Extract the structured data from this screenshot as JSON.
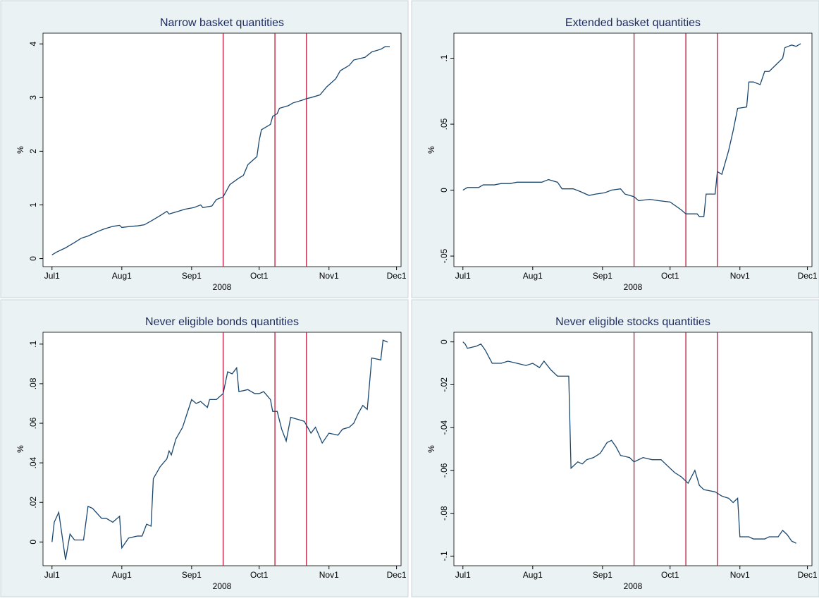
{
  "chart_data": [
    {
      "type": "line",
      "title": "Narrow basket quantities",
      "xlabel": "2008",
      "ylabel": "%",
      "color": "#1a476f",
      "vline_color": "#c0183a",
      "vlines": [
        "2008-09-15",
        "2008-10-08",
        "2008-10-22"
      ],
      "xlim": [
        "2008-06-27",
        "2008-12-03"
      ],
      "xticks": [
        {
          "value": "2008-07-01",
          "label": "Jul1"
        },
        {
          "value": "2008-08-01",
          "label": "Aug1"
        },
        {
          "value": "2008-09-01",
          "label": "Sep1"
        },
        {
          "value": "2008-10-01",
          "label": "Oct1"
        },
        {
          "value": "2008-11-01",
          "label": "Nov1"
        },
        {
          "value": "2008-12-01",
          "label": "Dec1"
        }
      ],
      "ylim": [
        -0.15,
        4.2
      ],
      "yticks": [
        0,
        1,
        2,
        3,
        4
      ],
      "x": [
        "2008-07-01",
        "2008-07-03",
        "2008-07-07",
        "2008-07-09",
        "2008-07-11",
        "2008-07-14",
        "2008-07-17",
        "2008-07-21",
        "2008-07-24",
        "2008-07-28",
        "2008-07-31",
        "2008-08-01",
        "2008-08-05",
        "2008-08-08",
        "2008-08-11",
        "2008-08-14",
        "2008-08-18",
        "2008-08-21",
        "2008-08-22",
        "2008-08-26",
        "2008-08-29",
        "2008-09-02",
        "2008-09-05",
        "2008-09-06",
        "2008-09-10",
        "2008-09-12",
        "2008-09-15",
        "2008-09-18",
        "2008-09-22",
        "2008-09-24",
        "2008-09-26",
        "2008-09-30",
        "2008-10-01",
        "2008-10-02",
        "2008-10-06",
        "2008-10-07",
        "2008-10-09",
        "2008-10-10",
        "2008-10-14",
        "2008-10-16",
        "2008-10-20",
        "2008-10-22",
        "2008-10-24",
        "2008-10-28",
        "2008-10-31",
        "2008-11-04",
        "2008-11-06",
        "2008-11-10",
        "2008-11-12",
        "2008-11-17",
        "2008-11-20",
        "2008-11-24",
        "2008-11-26",
        "2008-11-28"
      ],
      "values": [
        0.07,
        0.12,
        0.2,
        0.25,
        0.3,
        0.38,
        0.42,
        0.5,
        0.55,
        0.6,
        0.62,
        0.58,
        0.6,
        0.61,
        0.63,
        0.7,
        0.8,
        0.88,
        0.83,
        0.88,
        0.92,
        0.95,
        1.0,
        0.95,
        0.98,
        1.1,
        1.15,
        1.38,
        1.5,
        1.55,
        1.75,
        1.9,
        2.2,
        2.4,
        2.5,
        2.65,
        2.7,
        2.8,
        2.85,
        2.9,
        2.95,
        2.98,
        3.0,
        3.05,
        3.2,
        3.35,
        3.5,
        3.6,
        3.7,
        3.75,
        3.85,
        3.9,
        3.95,
        3.95
      ]
    },
    {
      "type": "line",
      "title": "Extended basket quantities",
      "xlabel": "2008",
      "ylabel": "%",
      "color": "#1a476f",
      "vline_color": "#c0183a",
      "vlines": [
        "2008-09-15",
        "2008-10-08",
        "2008-10-22"
      ],
      "xlim": [
        "2008-06-27",
        "2008-12-03"
      ],
      "xticks": [
        {
          "value": "2008-07-01",
          "label": "Jul1"
        },
        {
          "value": "2008-08-01",
          "label": "Aug1"
        },
        {
          "value": "2008-09-01",
          "label": "Sep1"
        },
        {
          "value": "2008-10-01",
          "label": "Oct1"
        },
        {
          "value": "2008-11-01",
          "label": "Nov1"
        },
        {
          "value": "2008-12-01",
          "label": "Dec1"
        }
      ],
      "ylim": [
        -0.058,
        0.119
      ],
      "yticks": [
        {
          "value": -0.05,
          "label": "-.05"
        },
        0,
        {
          "value": 0.05,
          "label": ".05"
        },
        {
          "value": 0.1,
          "label": ".1"
        }
      ],
      "x": [
        "2008-07-01",
        "2008-07-03",
        "2008-07-08",
        "2008-07-10",
        "2008-07-15",
        "2008-07-18",
        "2008-07-22",
        "2008-07-25",
        "2008-08-01",
        "2008-08-05",
        "2008-08-08",
        "2008-08-12",
        "2008-08-14",
        "2008-08-19",
        "2008-08-22",
        "2008-08-26",
        "2008-08-29",
        "2008-09-02",
        "2008-09-05",
        "2008-09-09",
        "2008-09-11",
        "2008-09-15",
        "2008-09-17",
        "2008-09-22",
        "2008-09-26",
        "2008-10-01",
        "2008-10-06",
        "2008-10-08",
        "2008-10-13",
        "2008-10-14",
        "2008-10-16",
        "2008-10-17",
        "2008-10-21",
        "2008-10-22",
        "2008-10-24",
        "2008-10-27",
        "2008-10-29",
        "2008-10-31",
        "2008-11-04",
        "2008-11-05",
        "2008-11-07",
        "2008-11-10",
        "2008-11-12",
        "2008-11-14",
        "2008-11-17",
        "2008-11-20",
        "2008-11-21",
        "2008-11-24",
        "2008-11-26",
        "2008-11-28"
      ],
      "values": [
        0,
        0.002,
        0.002,
        0.004,
        0.004,
        0.005,
        0.005,
        0.006,
        0.006,
        0.006,
        0.008,
        0.006,
        0.001,
        0.001,
        -0.001,
        -0.004,
        -0.003,
        -0.002,
        0,
        0.001,
        -0.003,
        -0.005,
        -0.008,
        -0.007,
        -0.008,
        -0.009,
        -0.015,
        -0.018,
        -0.018,
        -0.02,
        -0.02,
        -0.003,
        -0.003,
        0.014,
        0.012,
        0.03,
        0.045,
        0.062,
        0.063,
        0.082,
        0.082,
        0.08,
        0.09,
        0.09,
        0.095,
        0.1,
        0.108,
        0.11,
        0.109,
        0.111
      ]
    },
    {
      "type": "line",
      "title": "Never eligible bonds quantities",
      "xlabel": "2008",
      "ylabel": "%",
      "color": "#1a476f",
      "vline_color": "#c0183a",
      "vlines": [
        "2008-09-15",
        "2008-10-08",
        "2008-10-22"
      ],
      "xlim": [
        "2008-06-27",
        "2008-12-03"
      ],
      "xticks": [
        {
          "value": "2008-07-01",
          "label": "Jul1"
        },
        {
          "value": "2008-08-01",
          "label": "Aug1"
        },
        {
          "value": "2008-09-01",
          "label": "Sep1"
        },
        {
          "value": "2008-10-01",
          "label": "Oct1"
        },
        {
          "value": "2008-11-01",
          "label": "Nov1"
        },
        {
          "value": "2008-12-01",
          "label": "Dec1"
        }
      ],
      "ylim": [
        -0.012,
        0.106
      ],
      "yticks": [
        0,
        {
          "value": 0.02,
          "label": ".02"
        },
        {
          "value": 0.04,
          "label": ".04"
        },
        {
          "value": 0.06,
          "label": ".06"
        },
        {
          "value": 0.08,
          "label": ".08"
        },
        {
          "value": 0.1,
          "label": ".1"
        }
      ],
      "x": [
        "2008-07-01",
        "2008-07-02",
        "2008-07-04",
        "2008-07-07",
        "2008-07-09",
        "2008-07-11",
        "2008-07-15",
        "2008-07-17",
        "2008-07-19",
        "2008-07-23",
        "2008-07-25",
        "2008-07-28",
        "2008-07-30",
        "2008-07-31",
        "2008-08-01",
        "2008-08-04",
        "2008-08-08",
        "2008-08-10",
        "2008-08-12",
        "2008-08-14",
        "2008-08-15",
        "2008-08-18",
        "2008-08-21",
        "2008-08-22",
        "2008-08-23",
        "2008-08-25",
        "2008-08-28",
        "2008-08-30",
        "2008-09-01",
        "2008-09-03",
        "2008-09-05",
        "2008-09-08",
        "2008-09-09",
        "2008-09-12",
        "2008-09-15",
        "2008-09-17",
        "2008-09-19",
        "2008-09-21",
        "2008-09-22",
        "2008-09-26",
        "2008-09-29",
        "2008-10-01",
        "2008-10-03",
        "2008-10-06",
        "2008-10-07",
        "2008-10-09",
        "2008-10-11",
        "2008-10-13",
        "2008-10-15",
        "2008-10-18",
        "2008-10-21",
        "2008-10-24",
        "2008-10-26",
        "2008-10-29",
        "2008-11-01",
        "2008-11-05",
        "2008-11-07",
        "2008-11-10",
        "2008-11-12",
        "2008-11-14",
        "2008-11-16",
        "2008-11-18",
        "2008-11-20",
        "2008-11-24",
        "2008-11-25",
        "2008-11-27"
      ],
      "values": [
        0,
        0.01,
        0.015,
        -0.009,
        0.004,
        0.001,
        0.001,
        0.018,
        0.017,
        0.012,
        0.012,
        0.01,
        0.012,
        0.013,
        -0.003,
        0.002,
        0.003,
        0.003,
        0.009,
        0.008,
        0.032,
        0.038,
        0.042,
        0.046,
        0.044,
        0.052,
        0.058,
        0.065,
        0.072,
        0.07,
        0.071,
        0.068,
        0.072,
        0.072,
        0.075,
        0.086,
        0.085,
        0.088,
        0.076,
        0.077,
        0.075,
        0.075,
        0.076,
        0.072,
        0.066,
        0.066,
        0.057,
        0.051,
        0.063,
        0.062,
        0.061,
        0.055,
        0.058,
        0.05,
        0.055,
        0.054,
        0.057,
        0.058,
        0.06,
        0.065,
        0.069,
        0.067,
        0.093,
        0.092,
        0.102,
        0.101
      ]
    },
    {
      "type": "line",
      "title": "Never eligible stocks quantities",
      "xlabel": "2008",
      "ylabel": "%",
      "color": "#1a476f",
      "vline_color": "#c0183a",
      "vlines": [
        "2008-09-15",
        "2008-10-08",
        "2008-10-22"
      ],
      "xlim": [
        "2008-06-27",
        "2008-12-03"
      ],
      "xticks": [
        {
          "value": "2008-07-01",
          "label": "Jul1"
        },
        {
          "value": "2008-08-01",
          "label": "Aug1"
        },
        {
          "value": "2008-09-01",
          "label": "Sep1"
        },
        {
          "value": "2008-10-01",
          "label": "Oct1"
        },
        {
          "value": "2008-11-01",
          "label": "Nov1"
        },
        {
          "value": "2008-12-01",
          "label": "Dec1"
        }
      ],
      "ylim": [
        -0.1045,
        0.0045
      ],
      "yticks": [
        {
          "value": -0.1,
          "label": "-.1"
        },
        {
          "value": -0.08,
          "label": "-.08"
        },
        {
          "value": -0.06,
          "label": "-.06"
        },
        {
          "value": -0.04,
          "label": "-.04"
        },
        {
          "value": -0.02,
          "label": "-.02"
        },
        0
      ],
      "x": [
        "2008-07-01",
        "2008-07-02",
        "2008-07-03",
        "2008-07-07",
        "2008-07-09",
        "2008-07-11",
        "2008-07-14",
        "2008-07-18",
        "2008-07-21",
        "2008-07-25",
        "2008-07-29",
        "2008-08-01",
        "2008-08-04",
        "2008-08-06",
        "2008-08-09",
        "2008-08-12",
        "2008-08-14",
        "2008-08-17",
        "2008-08-18",
        "2008-08-21",
        "2008-08-23",
        "2008-08-25",
        "2008-08-28",
        "2008-08-31",
        "2008-09-03",
        "2008-09-05",
        "2008-09-07",
        "2008-09-09",
        "2008-09-13",
        "2008-09-15",
        "2008-09-19",
        "2008-09-23",
        "2008-09-27",
        "2008-09-30",
        "2008-10-03",
        "2008-10-06",
        "2008-10-09",
        "2008-10-12",
        "2008-10-14",
        "2008-10-16",
        "2008-10-21",
        "2008-10-24",
        "2008-10-27",
        "2008-10-29",
        "2008-10-30",
        "2008-10-31",
        "2008-11-01",
        "2008-11-05",
        "2008-11-07",
        "2008-11-12",
        "2008-11-14",
        "2008-11-18",
        "2008-11-20",
        "2008-11-22",
        "2008-11-24",
        "2008-11-26"
      ],
      "values": [
        0,
        -0.001,
        -0.003,
        -0.002,
        -0.001,
        -0.004,
        -0.01,
        -0.01,
        -0.009,
        -0.01,
        -0.011,
        -0.01,
        -0.012,
        -0.009,
        -0.013,
        -0.016,
        -0.016,
        -0.016,
        -0.059,
        -0.056,
        -0.057,
        -0.055,
        -0.054,
        -0.052,
        -0.047,
        -0.046,
        -0.049,
        -0.053,
        -0.054,
        -0.056,
        -0.054,
        -0.055,
        -0.055,
        -0.058,
        -0.061,
        -0.063,
        -0.066,
        -0.06,
        -0.067,
        -0.069,
        -0.07,
        -0.072,
        -0.073,
        -0.075,
        -0.074,
        -0.073,
        -0.091,
        -0.091,
        -0.092,
        -0.092,
        -0.091,
        -0.091,
        -0.088,
        -0.09,
        -0.093,
        -0.094
      ]
    }
  ]
}
